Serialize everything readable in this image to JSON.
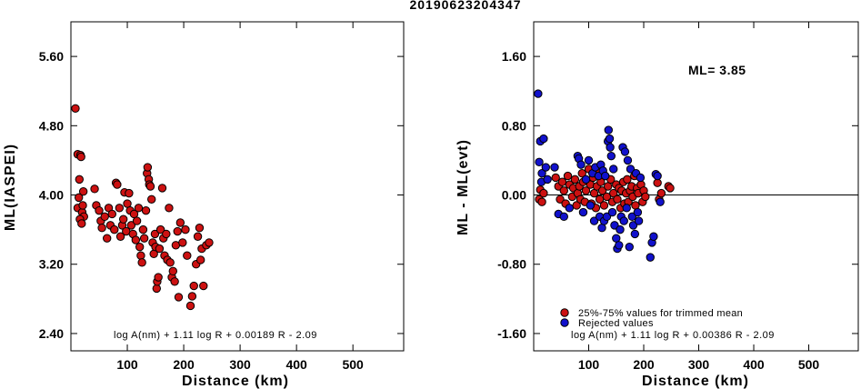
{
  "title": "20190623204347",
  "chart_data": [
    {
      "type": "scatter",
      "xlabel": "Distance (km)",
      "ylabel": "ML(IASPEI)",
      "xlim": [
        0,
        590
      ],
      "ylim": [
        2.2,
        6.0
      ],
      "xticks": [
        100,
        200,
        300,
        400,
        500
      ],
      "yticks": [
        2.4,
        3.2,
        4.0,
        4.8,
        5.6
      ],
      "ytick_labels": [
        "2.40",
        "3.20",
        "4.00",
        "4.80",
        "5.60"
      ],
      "annotation": "log A(nm) + 1.11 log R + 0.00189 R - 2.09",
      "point_color": "#cc1111",
      "series": [
        {
          "points": [
            [
              8,
              5.0
            ],
            [
              12,
              4.47
            ],
            [
              17,
              4.46
            ],
            [
              18,
              4.44
            ],
            [
              15,
              4.18
            ],
            [
              22,
              4.04
            ],
            [
              14,
              3.97
            ],
            [
              12,
              3.85
            ],
            [
              20,
              3.8
            ],
            [
              23,
              3.75
            ],
            [
              16,
              3.72
            ],
            [
              19,
              3.67
            ],
            [
              21,
              3.88
            ],
            [
              42,
              4.07
            ],
            [
              45,
              3.88
            ],
            [
              50,
              3.82
            ],
            [
              53,
              3.7
            ],
            [
              55,
              3.62
            ],
            [
              60,
              3.75
            ],
            [
              64,
              3.5
            ],
            [
              67,
              3.85
            ],
            [
              70,
              3.65
            ],
            [
              73,
              3.78
            ],
            [
              77,
              3.6
            ],
            [
              80,
              4.14
            ],
            [
              82,
              4.12
            ],
            [
              86,
              3.85
            ],
            [
              88,
              3.52
            ],
            [
              91,
              3.65
            ],
            [
              93,
              3.72
            ],
            [
              95,
              4.03
            ],
            [
              98,
              3.58
            ],
            [
              100,
              3.9
            ],
            [
              103,
              4.02
            ],
            [
              105,
              3.82
            ],
            [
              107,
              3.65
            ],
            [
              110,
              3.55
            ],
            [
              112,
              3.78
            ],
            [
              115,
              3.48
            ],
            [
              117,
              3.7
            ],
            [
              120,
              3.85
            ],
            [
              122,
              3.4
            ],
            [
              124,
              3.3
            ],
            [
              126,
              3.22
            ],
            [
              128,
              3.6
            ],
            [
              130,
              3.5
            ],
            [
              133,
              3.82
            ],
            [
              135,
              4.25
            ],
            [
              136,
              4.32
            ],
            [
              138,
              4.18
            ],
            [
              139,
              4.12
            ],
            [
              141,
              4.1
            ],
            [
              143,
              3.95
            ],
            [
              145,
              3.45
            ],
            [
              147,
              3.32
            ],
            [
              149,
              3.55
            ],
            [
              150,
              3.4
            ],
            [
              152,
              2.92
            ],
            [
              153,
              3.0
            ],
            [
              155,
              3.05
            ],
            [
              157,
              3.38
            ],
            [
              159,
              3.6
            ],
            [
              162,
              4.08
            ],
            [
              164,
              3.5
            ],
            [
              166,
              3.3
            ],
            [
              169,
              3.55
            ],
            [
              171,
              3.25
            ],
            [
              174,
              3.85
            ],
            [
              176,
              3.22
            ],
            [
              179,
              3.05
            ],
            [
              181,
              3.12
            ],
            [
              184,
              3.0
            ],
            [
              186,
              3.42
            ],
            [
              189,
              3.58
            ],
            [
              191,
              2.82
            ],
            [
              194,
              3.68
            ],
            [
              198,
              3.45
            ],
            [
              203,
              3.6
            ],
            [
              206,
              3.3
            ],
            [
              212,
              2.72
            ],
            [
              215,
              2.83
            ],
            [
              218,
              2.95
            ],
            [
              222,
              3.2
            ],
            [
              225,
              3.52
            ],
            [
              228,
              3.62
            ],
            [
              230,
              3.25
            ],
            [
              232,
              3.38
            ],
            [
              235,
              2.95
            ],
            [
              240,
              3.42
            ],
            [
              245,
              3.45
            ]
          ]
        }
      ]
    },
    {
      "type": "scatter",
      "xlabel": "Distance (km)",
      "ylabel": "ML - ML(evt)",
      "xlim": [
        0,
        590
      ],
      "ylim": [
        -1.8,
        2.0
      ],
      "xticks": [
        100,
        200,
        300,
        400,
        500
      ],
      "yticks": [
        -1.6,
        -0.8,
        0.0,
        0.8,
        1.6
      ],
      "ytick_labels": [
        "-1.60",
        "-0.80",
        "0.00",
        "0.80",
        "1.60"
      ],
      "reference_line_y": 0.0,
      "ml_label": "ML= 3.85",
      "annotation": "log A(nm) + 1.11 log R + 0.00386 R - 2.09",
      "legend": [
        {
          "label": "25%-75% values for trimmed mean",
          "color": "#cc1111"
        },
        {
          "label": "Rejected values",
          "color": "#1111cc"
        }
      ],
      "series": [
        {
          "color": "#cc1111",
          "points": [
            [
              10,
              -0.05
            ],
            [
              12,
              0.06
            ],
            [
              15,
              -0.08
            ],
            [
              18,
              0.02
            ],
            [
              40,
              0.2
            ],
            [
              45,
              0.1
            ],
            [
              48,
              -0.05
            ],
            [
              52,
              0.15
            ],
            [
              55,
              0.05
            ],
            [
              58,
              -0.1
            ],
            [
              62,
              0.22
            ],
            [
              65,
              0.12
            ],
            [
              70,
              -0.02
            ],
            [
              72,
              0.08
            ],
            [
              75,
              0.18
            ],
            [
              78,
              -0.12
            ],
            [
              80,
              0.02
            ],
            [
              83,
              0.1
            ],
            [
              85,
              -0.05
            ],
            [
              88,
              0.25
            ],
            [
              90,
              0.15
            ],
            [
              93,
              -0.08
            ],
            [
              95,
              0.05
            ],
            [
              100,
              0.3
            ],
            [
              103,
              0.12
            ],
            [
              105,
              -0.1
            ],
            [
              108,
              0.2
            ],
            [
              110,
              0.02
            ],
            [
              113,
              -0.15
            ],
            [
              115,
              0.1
            ],
            [
              118,
              0.28
            ],
            [
              120,
              -0.05
            ],
            [
              122,
              0.15
            ],
            [
              125,
              0.05
            ],
            [
              128,
              -0.12
            ],
            [
              130,
              0.22
            ],
            [
              133,
              -0.02
            ],
            [
              135,
              0.1
            ],
            [
              140,
              0.18
            ],
            [
              143,
              -0.08
            ],
            [
              145,
              0.02
            ],
            [
              150,
              0.12
            ],
            [
              152,
              -0.05
            ],
            [
              155,
              0.08
            ],
            [
              158,
              -0.15
            ],
            [
              160,
              0.05
            ],
            [
              163,
              0.15
            ],
            [
              165,
              -0.1
            ],
            [
              168,
              0.02
            ],
            [
              170,
              0.18
            ],
            [
              172,
              -0.08
            ],
            [
              175,
              0.05
            ],
            [
              178,
              0.1
            ],
            [
              180,
              -0.02
            ],
            [
              183,
              0.22
            ],
            [
              185,
              -0.12
            ],
            [
              188,
              0.08
            ],
            [
              190,
              0.02
            ],
            [
              195,
              0.12
            ],
            [
              198,
              -0.08
            ],
            [
              200,
              0.05
            ],
            [
              203,
              -0.02
            ],
            [
              225,
              0.14
            ],
            [
              228,
              -0.05
            ],
            [
              232,
              0.02
            ],
            [
              245,
              0.1
            ],
            [
              248,
              0.08
            ]
          ]
        },
        {
          "color": "#1111cc",
          "points": [
            [
              8,
              1.17
            ],
            [
              12,
              0.62
            ],
            [
              18,
              0.65
            ],
            [
              10,
              0.38
            ],
            [
              15,
              0.25
            ],
            [
              22,
              0.32
            ],
            [
              14,
              0.15
            ],
            [
              25,
              0.18
            ],
            [
              38,
              0.32
            ],
            [
              45,
              -0.22
            ],
            [
              55,
              -0.25
            ],
            [
              65,
              -0.15
            ],
            [
              80,
              0.45
            ],
            [
              82,
              0.42
            ],
            [
              86,
              0.35
            ],
            [
              90,
              -0.2
            ],
            [
              95,
              0.18
            ],
            [
              100,
              0.4
            ],
            [
              103,
              -0.12
            ],
            [
              107,
              0.25
            ],
            [
              110,
              -0.3
            ],
            [
              112,
              0.32
            ],
            [
              118,
              0.22
            ],
            [
              120,
              -0.25
            ],
            [
              122,
              0.35
            ],
            [
              124,
              -0.38
            ],
            [
              126,
              0.28
            ],
            [
              128,
              -0.3
            ],
            [
              130,
              0.22
            ],
            [
              133,
              -0.25
            ],
            [
              135,
              0.62
            ],
            [
              136,
              0.75
            ],
            [
              138,
              0.65
            ],
            [
              139,
              0.55
            ],
            [
              141,
              0.45
            ],
            [
              143,
              -0.2
            ],
            [
              145,
              0.3
            ],
            [
              147,
              -0.35
            ],
            [
              150,
              -0.5
            ],
            [
              152,
              -0.62
            ],
            [
              155,
              -0.58
            ],
            [
              157,
              -0.4
            ],
            [
              159,
              -0.25
            ],
            [
              162,
              0.55
            ],
            [
              164,
              -0.3
            ],
            [
              166,
              0.5
            ],
            [
              169,
              -0.15
            ],
            [
              171,
              0.4
            ],
            [
              174,
              -0.6
            ],
            [
              176,
              0.3
            ],
            [
              179,
              -0.25
            ],
            [
              181,
              -0.35
            ],
            [
              184,
              -0.45
            ],
            [
              186,
              0.25
            ],
            [
              189,
              -0.2
            ],
            [
              191,
              -0.3
            ],
            [
              194,
              0.2
            ],
            [
              212,
              -0.72
            ],
            [
              215,
              -0.55
            ],
            [
              218,
              -0.48
            ],
            [
              222,
              0.24
            ],
            [
              225,
              0.22
            ],
            [
              230,
              -0.08
            ]
          ]
        }
      ]
    }
  ]
}
